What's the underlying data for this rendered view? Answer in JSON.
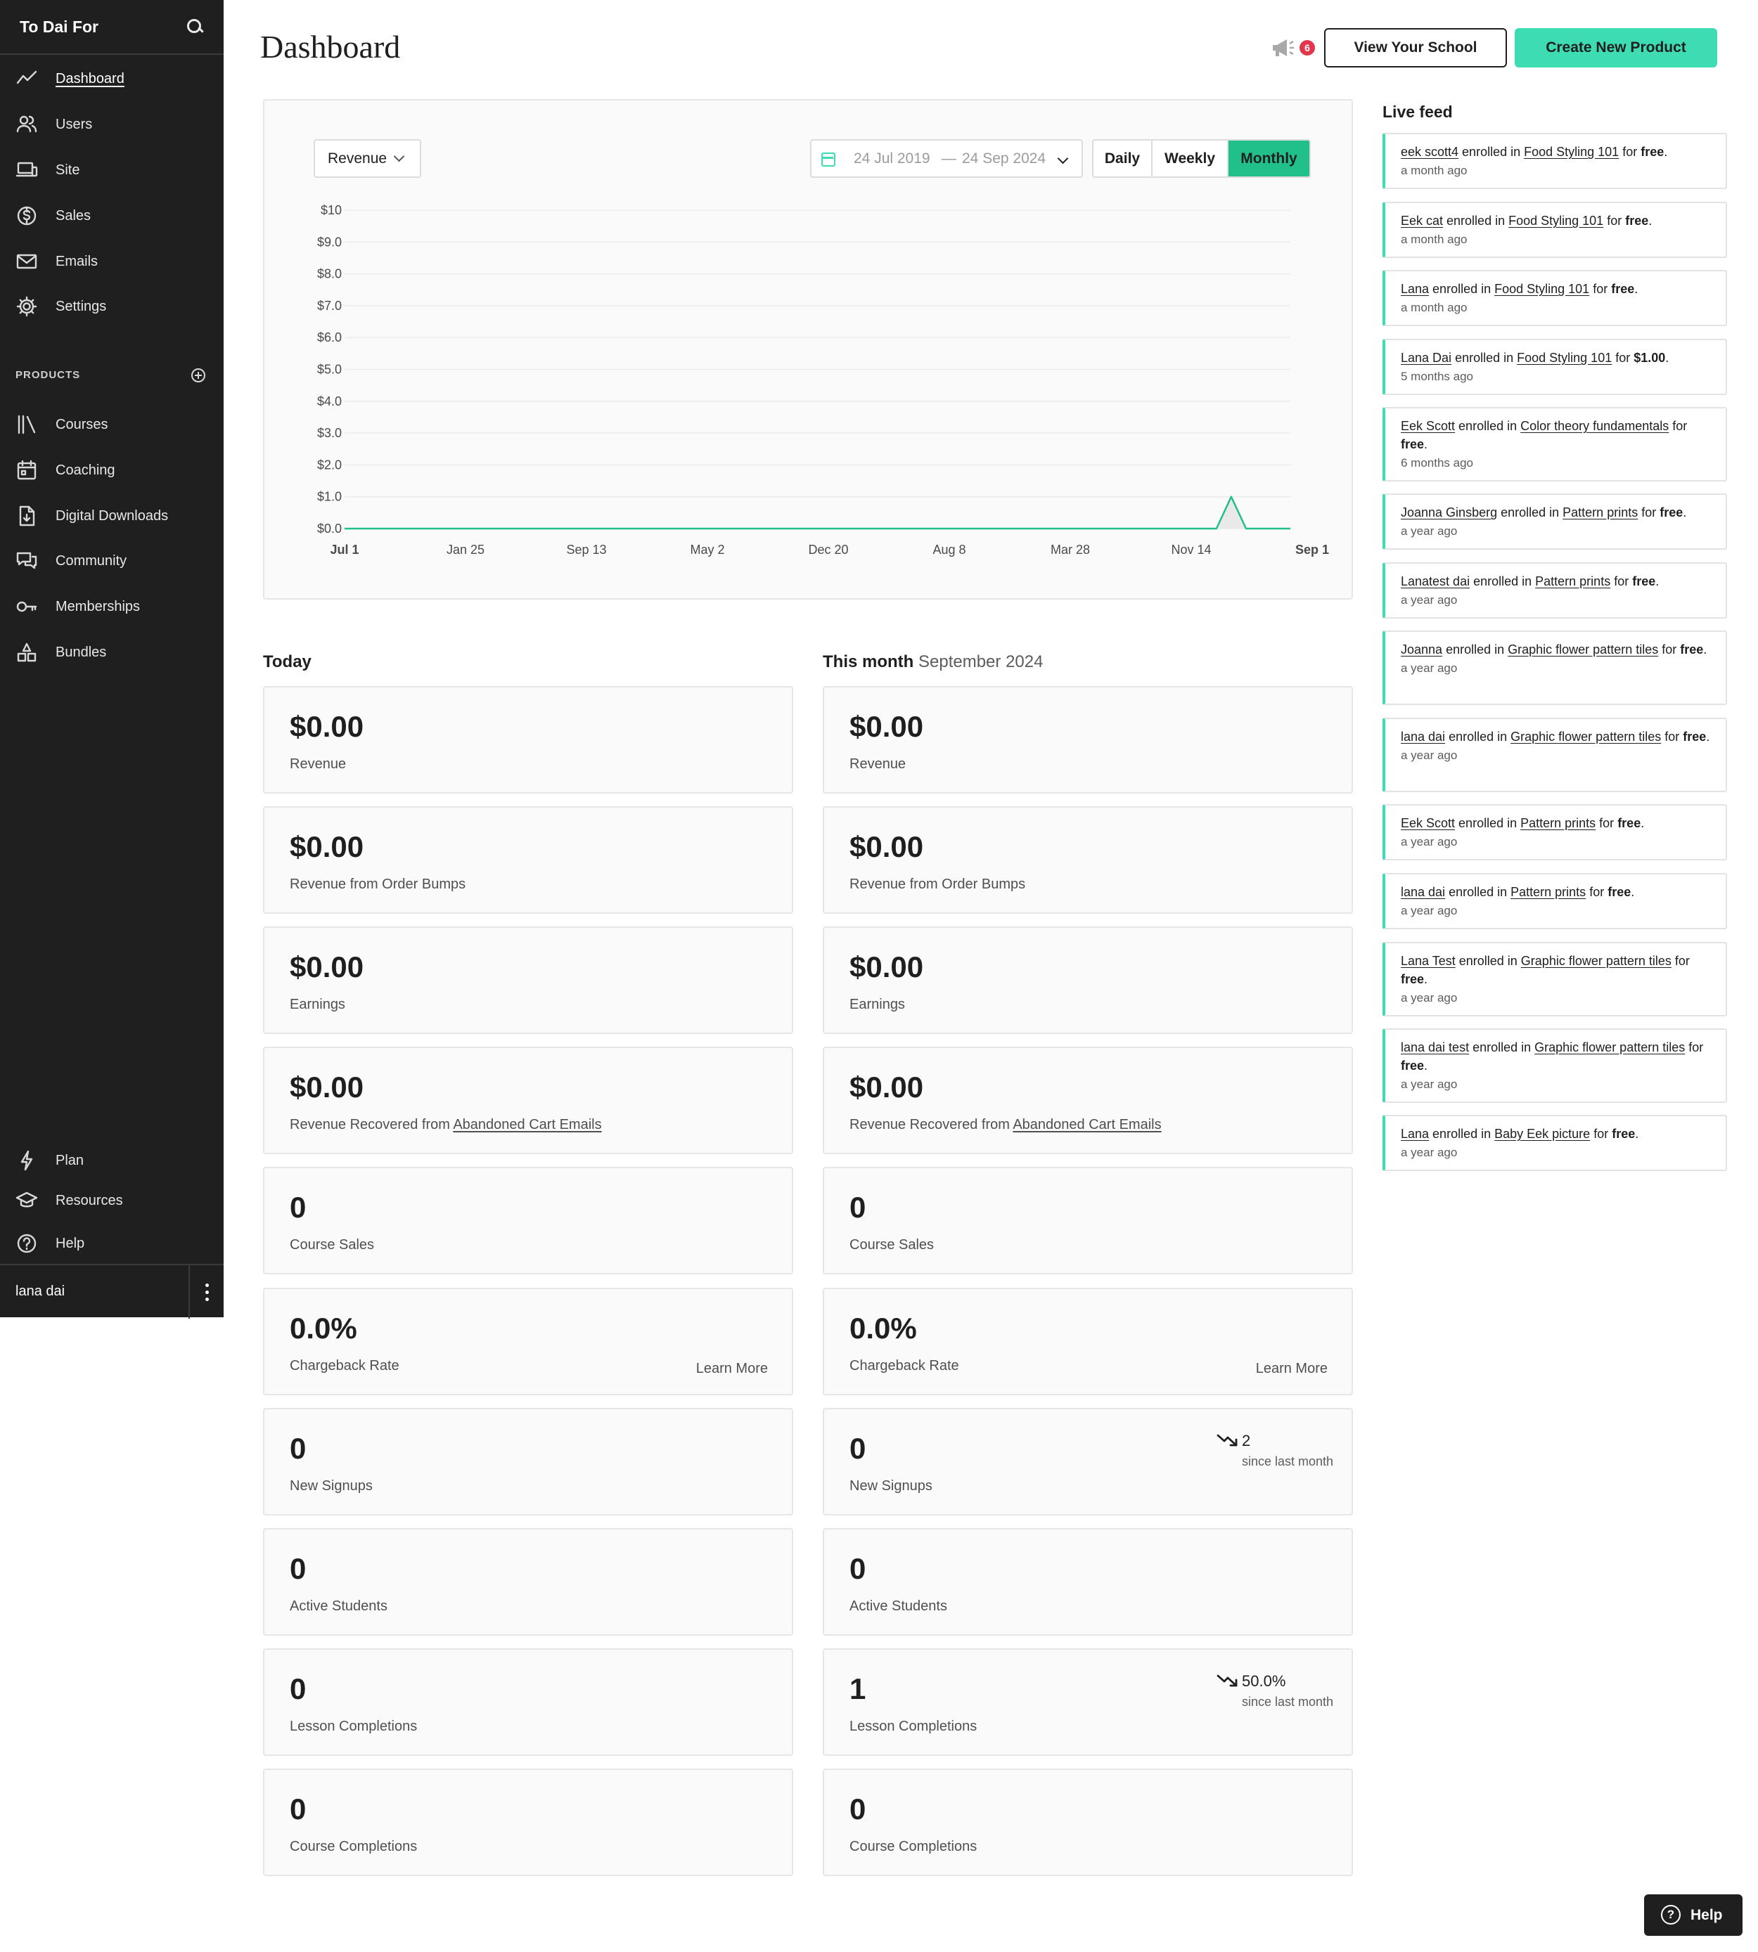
{
  "sidebar": {
    "brand": "To Dai For",
    "nav": [
      {
        "label": "Dashboard",
        "icon": "chart-line-icon"
      },
      {
        "label": "Users",
        "icon": "users-icon"
      },
      {
        "label": "Site",
        "icon": "devices-icon"
      },
      {
        "label": "Sales",
        "icon": "dollar-circle-icon"
      },
      {
        "label": "Emails",
        "icon": "envelope-icon"
      },
      {
        "label": "Settings",
        "icon": "gear-icon"
      }
    ],
    "products_heading": "PRODUCTS",
    "products": [
      {
        "label": "Courses",
        "icon": "library-icon"
      },
      {
        "label": "Coaching",
        "icon": "calendar-icon"
      },
      {
        "label": "Digital Downloads",
        "icon": "download-file-icon"
      },
      {
        "label": "Community",
        "icon": "chat-icon"
      },
      {
        "label": "Memberships",
        "icon": "key-icon"
      },
      {
        "label": "Bundles",
        "icon": "bundle-icon"
      }
    ],
    "bottom": [
      {
        "label": "Plan",
        "icon": "lightning-icon"
      },
      {
        "label": "Resources",
        "icon": "graduation-cap-icon"
      },
      {
        "label": "Help",
        "icon": "help-circle-icon"
      }
    ],
    "user_name": "lana dai"
  },
  "header": {
    "title": "Dashboard",
    "notification_count": "6",
    "view_school_label": "View Your School",
    "create_product_label": "Create New Product"
  },
  "chart_controls": {
    "metric": "Revenue",
    "date_from": "24 Jul 2019",
    "date_sep": "—",
    "date_to": "24 Sep 2024",
    "periods": [
      "Daily",
      "Weekly",
      "Monthly"
    ],
    "active_period": "Monthly"
  },
  "chart_data": {
    "type": "area",
    "title": "",
    "xlabel": "",
    "ylabel": "",
    "y_ticks": [
      "$0.0",
      "$1.0",
      "$2.0",
      "$3.0",
      "$4.0",
      "$5.0",
      "$6.0",
      "$7.0",
      "$8.0",
      "$9.0",
      "$10"
    ],
    "ylim": [
      0,
      10
    ],
    "x_ticks": [
      "Jul 1",
      "Jan 25",
      "Sep 13",
      "May 2",
      "Dec 20",
      "Aug 8",
      "Mar 28",
      "Nov 14",
      "Sep 1"
    ],
    "x_bold_ticks": [
      "Jul 1",
      "Sep 1"
    ],
    "grid": true,
    "series": [
      {
        "values": [
          0,
          0,
          0,
          0,
          0,
          0,
          0,
          0,
          0,
          0,
          0,
          0,
          0,
          0,
          0,
          0,
          0,
          0,
          0,
          0,
          0,
          0,
          0,
          0,
          0,
          0,
          0,
          0,
          0,
          0,
          0,
          0,
          0,
          0,
          0,
          0,
          0,
          0,
          0,
          0,
          0,
          0,
          0,
          0,
          0,
          0,
          0,
          0,
          0,
          0,
          0,
          0,
          0,
          0,
          0,
          0,
          0,
          0,
          0,
          0,
          1,
          0,
          0,
          0,
          0
        ]
      }
    ],
    "colors": {
      "line": "#21c08b",
      "fill": "#e9e9e9"
    }
  },
  "stats": {
    "today": {
      "title": "Today",
      "cards": [
        {
          "value": "$0.00",
          "label": "Revenue"
        },
        {
          "value": "$0.00",
          "label": "Revenue from Order Bumps"
        },
        {
          "value": "$0.00",
          "label": "Earnings"
        },
        {
          "value": "$0.00",
          "label_prefix": "Revenue Recovered from ",
          "label_link": "Abandoned Cart Emails"
        },
        {
          "value": "0",
          "label": "Course Sales"
        },
        {
          "value": "0.0%",
          "label": "Chargeback Rate",
          "action": "Learn More"
        },
        {
          "value": "0",
          "label": "New Signups"
        },
        {
          "value": "0",
          "label": "Active Students"
        },
        {
          "value": "0",
          "label": "Lesson Completions"
        },
        {
          "value": "0",
          "label": "Course Completions"
        }
      ]
    },
    "month": {
      "title": "This month",
      "subtitle": "September 2024",
      "cards": [
        {
          "value": "$0.00",
          "label": "Revenue"
        },
        {
          "value": "$0.00",
          "label": "Revenue from Order Bumps"
        },
        {
          "value": "$0.00",
          "label": "Earnings"
        },
        {
          "value": "$0.00",
          "label_prefix": "Revenue Recovered from ",
          "label_link": "Abandoned Cart Emails"
        },
        {
          "value": "0",
          "label": "Course Sales"
        },
        {
          "value": "0.0%",
          "label": "Chargeback Rate",
          "action": "Learn More"
        },
        {
          "value": "0",
          "label": "New Signups",
          "trend": "2",
          "trend_sub": "since last month"
        },
        {
          "value": "0",
          "label": "Active Students"
        },
        {
          "value": "1",
          "label": "Lesson Completions",
          "trend": "50.0%",
          "trend_sub": "since last month"
        },
        {
          "value": "0",
          "label": "Course Completions"
        }
      ]
    }
  },
  "live_feed": {
    "title": "Live feed",
    "items": [
      {
        "user": "eek scott4",
        "mid": " enrolled in ",
        "product": "Food Styling 101",
        "pre": " for ",
        "price": "free",
        "end": ".",
        "time": "a month ago"
      },
      {
        "user": "Eek cat",
        "mid": " enrolled in ",
        "product": "Food Styling 101",
        "pre": " for ",
        "price": "free",
        "end": ".",
        "time": "a month ago"
      },
      {
        "user": "Lana",
        "mid": " enrolled in ",
        "product": "Food Styling 101",
        "pre": " for ",
        "price": "free",
        "end": ".",
        "time": "a month ago"
      },
      {
        "user": "Lana Dai",
        "mid": " enrolled in ",
        "product": "Food Styling 101",
        "pre": " for ",
        "price": "$1.00",
        "end": ".",
        "time": "5 months ago"
      },
      {
        "user": "Eek Scott",
        "mid": " enrolled in ",
        "product": "Color theory fundamentals",
        "pre": " for ",
        "price": "free",
        "end": ".",
        "time": "6 months ago"
      },
      {
        "user": "Joanna Ginsberg",
        "mid": " enrolled in ",
        "product": "Pattern prints",
        "pre": " for ",
        "price": "free",
        "end": ".",
        "time": "a year ago"
      },
      {
        "user": "Lanatest dai",
        "mid": " enrolled in ",
        "product": "Pattern prints",
        "pre": " for ",
        "price": "free",
        "end": ".",
        "time": "a year ago"
      },
      {
        "user": "Joanna",
        "mid": " enrolled in ",
        "product": "Graphic flower pattern tiles",
        "pre": " for ",
        "price": "free",
        "end": ".",
        "time": "a year ago"
      },
      {
        "user": "lana dai",
        "mid": " enrolled in ",
        "product": "Graphic flower pattern tiles",
        "pre": " for ",
        "price": "free",
        "end": ".",
        "time": "a year ago"
      },
      {
        "user": "Eek Scott",
        "mid": " enrolled in ",
        "product": "Pattern prints",
        "pre": " for ",
        "price": "free",
        "end": ".",
        "time": "a year ago"
      },
      {
        "user": "lana dai",
        "mid": " enrolled in ",
        "product": "Pattern prints",
        "pre": " for ",
        "price": "free",
        "end": ".",
        "time": "a year ago"
      },
      {
        "user": "Lana Test",
        "mid": " enrolled in ",
        "product": "Graphic flower pattern tiles",
        "pre": " for ",
        "price": "free",
        "end": ".",
        "time": "a year ago"
      },
      {
        "user": "lana dai test",
        "mid": " enrolled in ",
        "product": "Graphic flower pattern tiles",
        "pre": " for ",
        "price": "free",
        "end": ".",
        "time": "a year ago"
      },
      {
        "user": "Lana",
        "mid": " enrolled in ",
        "product": "Baby Eek picture",
        "pre": " for ",
        "price": "free",
        "end": ".",
        "time": "a year ago"
      }
    ]
  },
  "help_button": "Help",
  "colors": {
    "accent": "#3ddcb3",
    "accent_dark": "#21c08b",
    "sidebar_bg": "#1f1f1f",
    "badge": "#e2354e"
  }
}
